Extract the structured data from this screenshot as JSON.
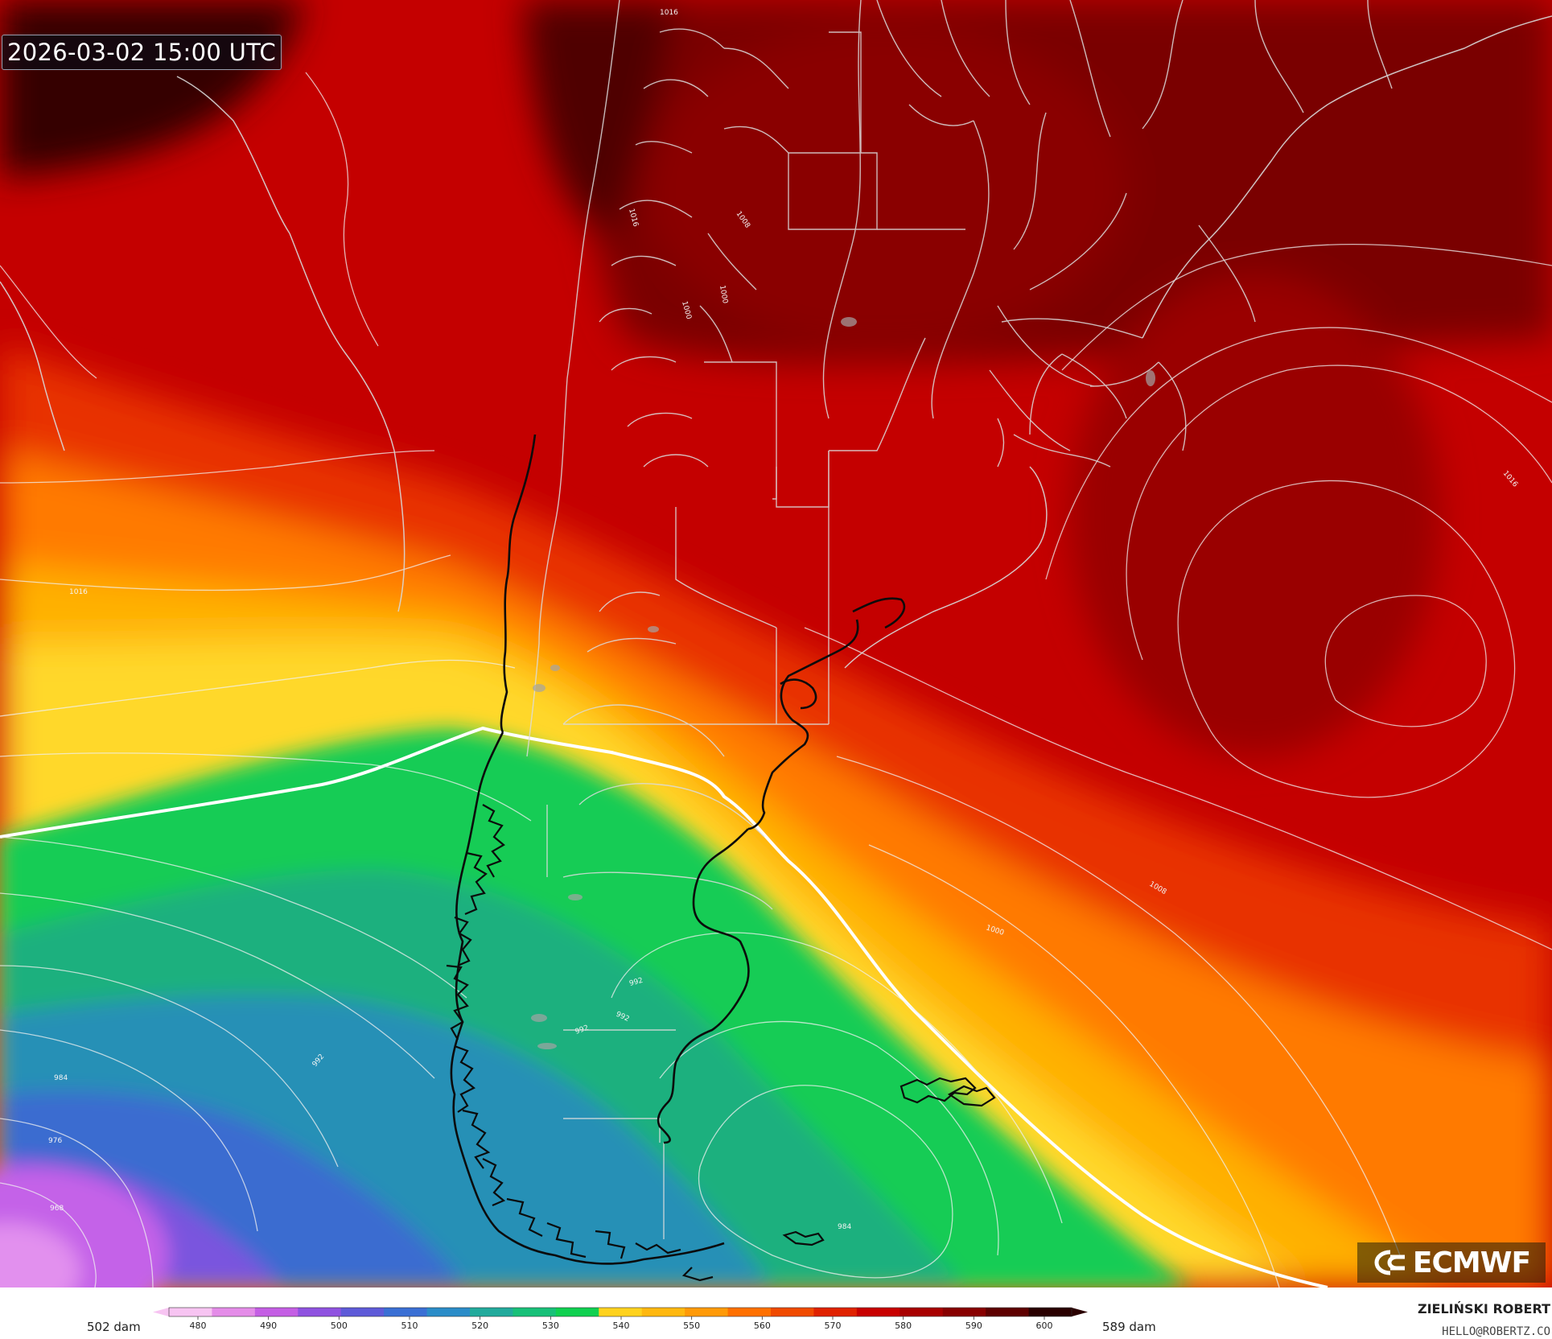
{
  "timestamp": "2026-03-02 15:00 UTC",
  "logo": {
    "text": "ECMWF",
    "icon": "ecmwf-logo-icon"
  },
  "legend": {
    "min_label": "502 dam",
    "max_label": "589 dam",
    "ticks": [
      "480",
      "490",
      "500",
      "510",
      "520",
      "530",
      "540",
      "550",
      "560",
      "570",
      "580",
      "590",
      "600"
    ],
    "palette": [
      "#f7c4f2",
      "#e48ce8",
      "#c45ee4",
      "#8f52e0",
      "#5e5ad8",
      "#3a6fd4",
      "#2a8cc8",
      "#22aa9c",
      "#18c078",
      "#10d050",
      "#ffd21e",
      "#ffb810",
      "#ff9a08",
      "#ff7000",
      "#f04a00",
      "#e02200",
      "#c80000",
      "#a80000",
      "#880000",
      "#5e0000",
      "#2a0000"
    ]
  },
  "isobar_labels": [
    "1016",
    "1016",
    "1016",
    "1000",
    "1000",
    "1008",
    "1016",
    "1008",
    "1000",
    "992",
    "992",
    "992",
    "992",
    "984",
    "984",
    "976",
    "968"
  ],
  "author": "ZIELIŃSKI ROBERT",
  "email": "HELLO@ROBERTZ.CO"
}
